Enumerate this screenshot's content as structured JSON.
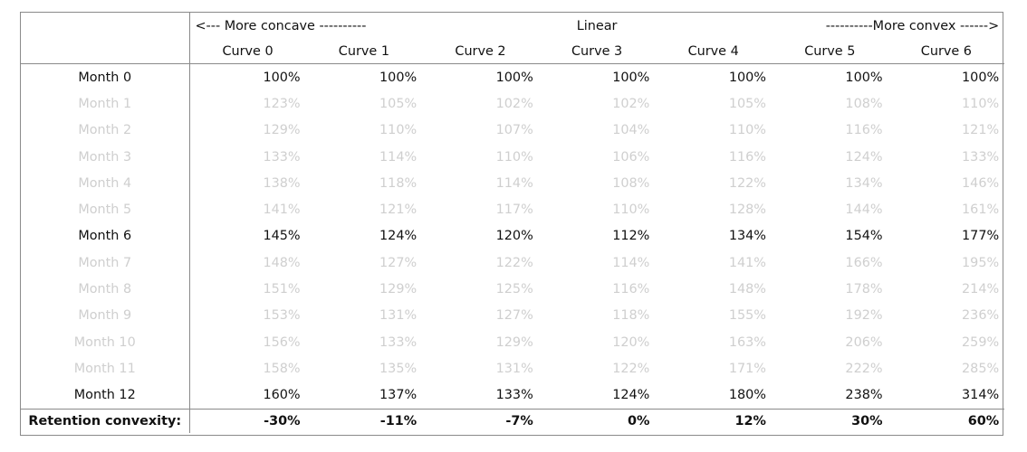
{
  "header": {
    "concave_label": "<--- More concave ----------",
    "linear_label": "Linear",
    "convex_label": "----------More convex ------>",
    "curves": [
      "Curve 0",
      "Curve 1",
      "Curve 2",
      "Curve 3",
      "Curve 4",
      "Curve 5",
      "Curve 6"
    ]
  },
  "rows": [
    {
      "label": "Month 0",
      "faded": false,
      "values": [
        "100%",
        "100%",
        "100%",
        "100%",
        "100%",
        "100%",
        "100%"
      ]
    },
    {
      "label": "Month 1",
      "faded": true,
      "values": [
        "123%",
        "105%",
        "102%",
        "102%",
        "105%",
        "108%",
        "110%"
      ]
    },
    {
      "label": "Month 2",
      "faded": true,
      "values": [
        "129%",
        "110%",
        "107%",
        "104%",
        "110%",
        "116%",
        "121%"
      ]
    },
    {
      "label": "Month 3",
      "faded": true,
      "values": [
        "133%",
        "114%",
        "110%",
        "106%",
        "116%",
        "124%",
        "133%"
      ]
    },
    {
      "label": "Month 4",
      "faded": true,
      "values": [
        "138%",
        "118%",
        "114%",
        "108%",
        "122%",
        "134%",
        "146%"
      ]
    },
    {
      "label": "Month 5",
      "faded": true,
      "values": [
        "141%",
        "121%",
        "117%",
        "110%",
        "128%",
        "144%",
        "161%"
      ]
    },
    {
      "label": "Month 6",
      "faded": false,
      "values": [
        "145%",
        "124%",
        "120%",
        "112%",
        "134%",
        "154%",
        "177%"
      ]
    },
    {
      "label": "Month 7",
      "faded": true,
      "values": [
        "148%",
        "127%",
        "122%",
        "114%",
        "141%",
        "166%",
        "195%"
      ]
    },
    {
      "label": "Month 8",
      "faded": true,
      "values": [
        "151%",
        "129%",
        "125%",
        "116%",
        "148%",
        "178%",
        "214%"
      ]
    },
    {
      "label": "Month 9",
      "faded": true,
      "values": [
        "153%",
        "131%",
        "127%",
        "118%",
        "155%",
        "192%",
        "236%"
      ]
    },
    {
      "label": "Month 10",
      "faded": true,
      "values": [
        "156%",
        "133%",
        "129%",
        "120%",
        "163%",
        "206%",
        "259%"
      ]
    },
    {
      "label": "Month 11",
      "faded": true,
      "values": [
        "158%",
        "135%",
        "131%",
        "122%",
        "171%",
        "222%",
        "285%"
      ]
    },
    {
      "label": "Month 12",
      "faded": false,
      "values": [
        "160%",
        "137%",
        "133%",
        "124%",
        "180%",
        "238%",
        "314%"
      ]
    }
  ],
  "footer": {
    "label": "Retention convexity:",
    "values": [
      "-30%",
      "-11%",
      "-7%",
      "0%",
      "12%",
      "30%",
      "60%"
    ]
  },
  "colors": {
    "text": "#111111",
    "faded_text": "#cfcfcf",
    "border": "#8a8a8a"
  }
}
